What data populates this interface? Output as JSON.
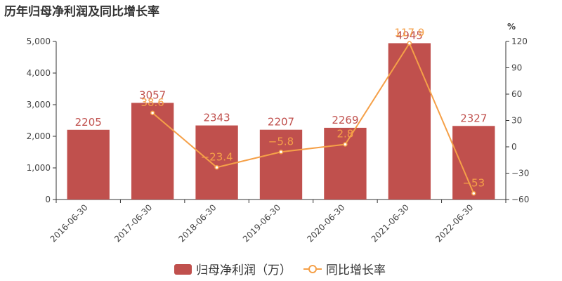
{
  "chart_data": {
    "type": "bar",
    "title": "历年归母净利润及同比增长率",
    "categories": [
      "2016-06-30",
      "2017-06-30",
      "2018-06-30",
      "2019-06-30",
      "2020-06-30",
      "2021-06-30",
      "2022-06-30"
    ],
    "series": [
      {
        "name": "归母净利润（万）",
        "type": "bar",
        "axis": "left",
        "color": "#c0504d",
        "values": [
          2205,
          3057,
          2343,
          2207,
          2269,
          4945,
          2327
        ],
        "labels": [
          "2205",
          "3057",
          "2343",
          "2207",
          "2269",
          "4945",
          "2327"
        ]
      },
      {
        "name": "同比增长率",
        "type": "line",
        "axis": "right",
        "color": "#f5a048",
        "values": [
          null,
          38.6,
          -23.4,
          -5.8,
          2.8,
          117.9,
          -53
        ],
        "labels": [
          "",
          "38.6",
          "−23.4",
          "−5.8",
          "2.8",
          "117.9",
          "−53"
        ]
      }
    ],
    "y_left": {
      "min": 0,
      "max": 5000,
      "ticks": [
        0,
        1000,
        2000,
        3000,
        4000,
        5000
      ],
      "tick_labels": [
        "0",
        "1,000",
        "2,000",
        "3,000",
        "4,000",
        "5,000"
      ]
    },
    "y_right": {
      "label": "%",
      "min": -60,
      "max": 120,
      "ticks": [
        -60,
        -30,
        0,
        30,
        60,
        90,
        120
      ],
      "tick_labels": [
        "−60",
        "−30",
        "0",
        "30",
        "60",
        "90",
        "120"
      ]
    },
    "grid": false,
    "legend_position": "bottom-center"
  }
}
